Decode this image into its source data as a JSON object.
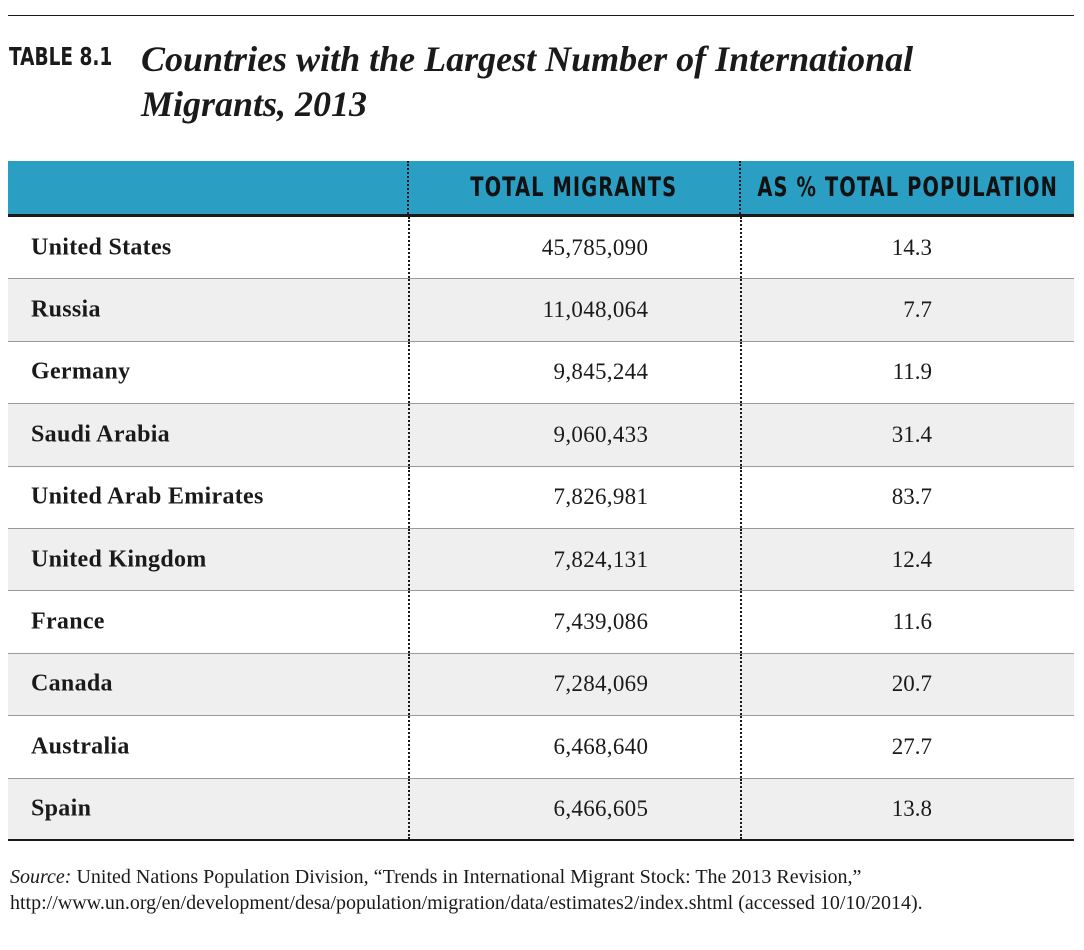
{
  "table": {
    "label": "TABLE 8.1",
    "title": "Countries with the Largest Number of International Migrants, 2013",
    "header_color": "#2a9ec3",
    "columns": [
      "",
      "TOTAL MIGRANTS",
      "AS % TOTAL POPULATION"
    ],
    "rows": [
      {
        "country": "United States",
        "total": "45,785,090",
        "pct": "14.3"
      },
      {
        "country": "Russia",
        "total": "11,048,064",
        "pct": "7.7"
      },
      {
        "country": "Germany",
        "total": "9,845,244",
        "pct": "11.9"
      },
      {
        "country": "Saudi Arabia",
        "total": "9,060,433",
        "pct": "31.4"
      },
      {
        "country": "United Arab Emirates",
        "total": "7,826,981",
        "pct": "83.7"
      },
      {
        "country": "United Kingdom",
        "total": "7,824,131",
        "pct": "12.4"
      },
      {
        "country": "France",
        "total": "7,439,086",
        "pct": "11.6"
      },
      {
        "country": "Canada",
        "total": "7,284,069",
        "pct": "20.7"
      },
      {
        "country": "Australia",
        "total": "6,468,640",
        "pct": "27.7"
      },
      {
        "country": "Spain",
        "total": "6,466,605",
        "pct": "13.8"
      }
    ]
  },
  "source": {
    "label": "Source:",
    "text": "United Nations Population Division, “Trends in International Migrant Stock: The 2013 Revision,” http://www.un.org/en/development/desa/population/migration/data/estimates2/index.shtml (accessed 10/10/2014)."
  }
}
